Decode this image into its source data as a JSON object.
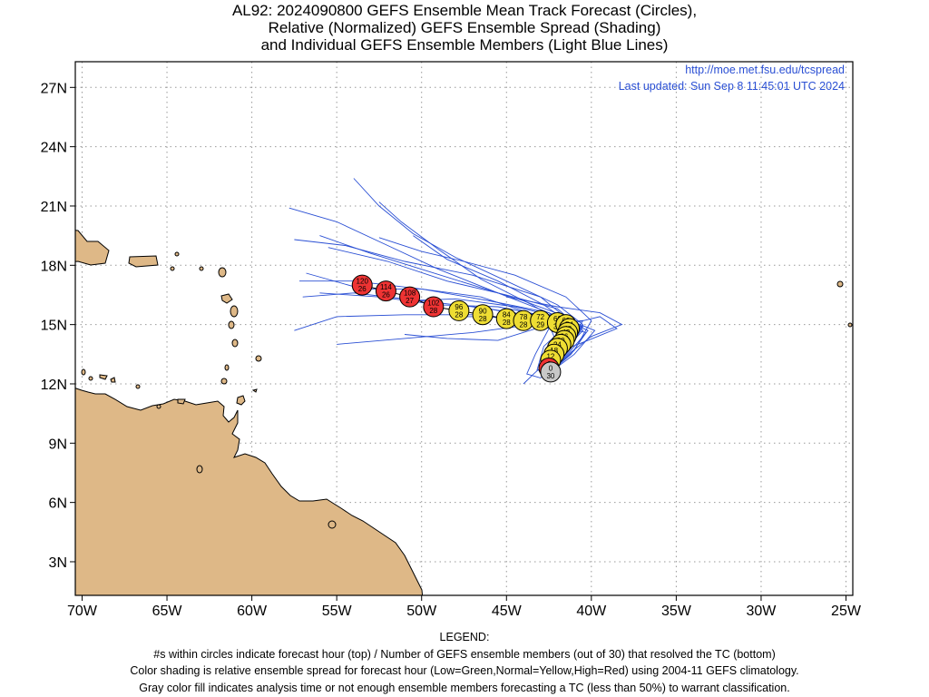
{
  "title": {
    "line1": "AL92: 2024090800 GEFS Ensemble Mean Track Forecast (Circles),",
    "line2": "Relative (Normalized) GEFS Ensemble Spread (Shading)",
    "line3": "and Individual GEFS Ensemble Members (Light Blue Lines)"
  },
  "source": {
    "url": "http://moe.met.fsu.edu/tcspread",
    "updated": "Last updated: Sun Sep 8 11:45:01 UTC 2024"
  },
  "axes": {
    "lat_labels": [
      "27N",
      "24N",
      "21N",
      "18N",
      "15N",
      "12N",
      "9N",
      "6N",
      "3N"
    ],
    "lat_values": [
      27,
      24,
      21,
      18,
      15,
      12,
      9,
      6,
      3
    ],
    "lon_labels": [
      "70W",
      "65W",
      "60W",
      "55W",
      "50W",
      "45W",
      "40W",
      "35W",
      "30W",
      "25W"
    ],
    "lon_values": [
      -70,
      -65,
      -60,
      -55,
      -50,
      -45,
      -40,
      -35,
      -30,
      -25
    ],
    "lon_range": [
      -70.4,
      -24.6
    ],
    "lat_range": [
      1.3,
      28.3
    ]
  },
  "colors": {
    "land": "#deb887",
    "ensemble_lines": "#2a4fd4",
    "high_spread": "#ee3333",
    "normal_spread": "#eedd33",
    "analysis_gray": "#c8c8c8",
    "source_text": "#2a4fd4"
  },
  "track": [
    {
      "hour": "0",
      "members": "30",
      "lon": -42.4,
      "lat": 12.6,
      "spread": "gray"
    },
    {
      "hour": "6",
      "members": "30",
      "lon": -42.5,
      "lat": 12.8,
      "spread": "high"
    },
    {
      "hour": "12",
      "members": "30",
      "lon": -42.4,
      "lat": 13.2,
      "spread": "normal"
    },
    {
      "hour": "18",
      "members": "30",
      "lon": -42.2,
      "lat": 13.5,
      "spread": "normal"
    },
    {
      "hour": "24",
      "members": "30",
      "lon": -42.0,
      "lat": 13.8,
      "spread": "normal"
    },
    {
      "hour": "30",
      "members": "30",
      "lon": -41.8,
      "lat": 14.0,
      "spread": "normal"
    },
    {
      "hour": "36",
      "members": "30",
      "lon": -41.6,
      "lat": 14.2,
      "spread": "normal"
    },
    {
      "hour": "42",
      "members": "30",
      "lon": -41.5,
      "lat": 14.4,
      "spread": "normal"
    },
    {
      "hour": "48",
      "members": "30",
      "lon": -41.4,
      "lat": 14.6,
      "spread": "normal"
    },
    {
      "hour": "54",
      "members": "30",
      "lon": -41.3,
      "lat": 14.8,
      "spread": "normal"
    },
    {
      "hour": "60",
      "members": "30",
      "lon": -41.5,
      "lat": 15.0,
      "spread": "normal"
    },
    {
      "hour": "66",
      "members": "30",
      "lon": -42.0,
      "lat": 15.1,
      "spread": "normal"
    },
    {
      "hour": "72",
      "members": "29",
      "lon": -43.0,
      "lat": 15.2,
      "spread": "normal"
    },
    {
      "hour": "78",
      "members": "28",
      "lon": -44.0,
      "lat": 15.2,
      "spread": "normal"
    },
    {
      "hour": "84",
      "members": "28",
      "lon": -45.0,
      "lat": 15.3,
      "spread": "normal"
    },
    {
      "hour": "90",
      "members": "28",
      "lon": -46.4,
      "lat": 15.5,
      "spread": "normal"
    },
    {
      "hour": "96",
      "members": "28",
      "lon": -47.8,
      "lat": 15.7,
      "spread": "normal"
    },
    {
      "hour": "102",
      "members": "28",
      "lon": -49.3,
      "lat": 15.9,
      "spread": "high"
    },
    {
      "hour": "108",
      "members": "27",
      "lon": -50.7,
      "lat": 16.4,
      "spread": "high"
    },
    {
      "hour": "114",
      "members": "26",
      "lon": -52.1,
      "lat": 16.7,
      "spread": "high"
    },
    {
      "hour": "120",
      "members": "26",
      "lon": -53.5,
      "lat": 17.0,
      "spread": "high"
    }
  ],
  "ensemble_members": [
    [
      [
        -42.4,
        12.6
      ],
      [
        -41.5,
        13.5
      ],
      [
        -40.8,
        14.6
      ],
      [
        -41.8,
        15.5
      ],
      [
        -44,
        16.2
      ],
      [
        -47,
        17
      ],
      [
        -50,
        17.8
      ],
      [
        -53,
        18.6
      ],
      [
        -56,
        19.5
      ]
    ],
    [
      [
        -42.4,
        12.6
      ],
      [
        -41.2,
        13.8
      ],
      [
        -40.5,
        15
      ],
      [
        -42,
        16
      ],
      [
        -45,
        17.2
      ],
      [
        -48,
        18.4
      ],
      [
        -50.5,
        19.6
      ],
      [
        -52.5,
        21
      ],
      [
        -54,
        22.4
      ]
    ],
    [
      [
        -42.4,
        12.6
      ],
      [
        -41.8,
        13.2
      ],
      [
        -41,
        14.4
      ],
      [
        -42.5,
        15.6
      ],
      [
        -45.5,
        16.6
      ],
      [
        -49,
        17.8
      ],
      [
        -52,
        19
      ],
      [
        -55,
        20.2
      ],
      [
        -57.8,
        20.9
      ]
    ],
    [
      [
        -42.4,
        12.6
      ],
      [
        -41.6,
        13.5
      ],
      [
        -40.8,
        14.8
      ],
      [
        -42.8,
        15.2
      ],
      [
        -46,
        15.8
      ],
      [
        -50,
        16.2
      ],
      [
        -54,
        16.6
      ],
      [
        -57,
        16.4
      ]
    ],
    [
      [
        -42.4,
        12.6
      ],
      [
        -41.4,
        13.6
      ],
      [
        -40.6,
        14.9
      ],
      [
        -43,
        15.1
      ],
      [
        -47,
        15.5
      ],
      [
        -51,
        15.5
      ],
      [
        -55,
        15.4
      ],
      [
        -57.5,
        14.7
      ]
    ],
    [
      [
        -42.4,
        12.6
      ],
      [
        -41.5,
        13.8
      ],
      [
        -40.5,
        15.2
      ],
      [
        -43.5,
        15
      ],
      [
        -47,
        14.6
      ],
      [
        -51,
        14.3
      ],
      [
        -55,
        14
      ]
    ],
    [
      [
        -42.4,
        12.6
      ],
      [
        -41.2,
        13.5
      ],
      [
        -40.3,
        14.6
      ],
      [
        -42.5,
        15
      ],
      [
        -45.5,
        14.2
      ],
      [
        -48.5,
        14.3
      ],
      [
        -51,
        14.5
      ]
    ],
    [
      [
        -42.4,
        12.6
      ],
      [
        -41.8,
        13.5
      ],
      [
        -40.7,
        14.8
      ],
      [
        -43,
        16.4
      ],
      [
        -47,
        17.5
      ],
      [
        -51,
        18.2
      ],
      [
        -54.5,
        19
      ],
      [
        -57.5,
        19.3
      ]
    ],
    [
      [
        -42.4,
        12.6
      ],
      [
        -41.3,
        13.6
      ],
      [
        -40.2,
        14.7
      ],
      [
        -42.5,
        15.6
      ],
      [
        -46,
        16.2
      ],
      [
        -50,
        16.8
      ],
      [
        -54,
        17.2
      ],
      [
        -57.2,
        17.2
      ]
    ],
    [
      [
        -42.4,
        12.6
      ],
      [
        -41,
        13.5
      ],
      [
        -39.8,
        14.7
      ],
      [
        -41.5,
        15.3
      ],
      [
        -44.5,
        15.9
      ],
      [
        -48,
        16.3
      ],
      [
        -51,
        16.2
      ]
    ],
    [
      [
        -42.4,
        12.6
      ],
      [
        -41.4,
        13.6
      ],
      [
        -40.5,
        14.9
      ],
      [
        -42.5,
        15.4
      ],
      [
        -45.5,
        15.9
      ],
      [
        -49,
        16
      ],
      [
        -52.5,
        16.4
      ],
      [
        -56,
        16.6
      ]
    ],
    [
      [
        -42.4,
        12.6
      ],
      [
        -41.5,
        13.6
      ],
      [
        -41,
        14.9
      ],
      [
        -42.8,
        16
      ],
      [
        -45.5,
        17.2
      ],
      [
        -48.5,
        18.3
      ],
      [
        -50.5,
        19.5
      ]
    ],
    [
      [
        -42.4,
        12.6
      ],
      [
        -41.8,
        13.5
      ],
      [
        -40.5,
        14.7
      ],
      [
        -42,
        15.8
      ],
      [
        -45,
        16.5
      ],
      [
        -48.5,
        17.2
      ],
      [
        -52,
        18.2
      ],
      [
        -55.5,
        18.9
      ]
    ],
    [
      [
        -42.4,
        12.6
      ],
      [
        -41.2,
        13.6
      ],
      [
        -40,
        14.4
      ],
      [
        -38.2,
        15
      ],
      [
        -39.5,
        15.6
      ],
      [
        -42,
        15.9
      ],
      [
        -45,
        16.4
      ]
    ],
    [
      [
        -42.4,
        12.6
      ],
      [
        -41.7,
        13.8
      ],
      [
        -41.5,
        15
      ],
      [
        -43.5,
        16
      ],
      [
        -46.5,
        17.3
      ],
      [
        -49,
        18.8
      ],
      [
        -51.2,
        20.2
      ],
      [
        -52.5,
        21.2
      ]
    ],
    [
      [
        -42.4,
        12.6
      ],
      [
        -42,
        13.5
      ],
      [
        -41.2,
        14.6
      ],
      [
        -43,
        15.4
      ],
      [
        -46.5,
        16.4
      ],
      [
        -50,
        16.8
      ],
      [
        -53.5,
        16.8
      ],
      [
        -56.8,
        17.6
      ]
    ],
    [
      [
        -42.4,
        12.6
      ],
      [
        -43,
        12.3
      ],
      [
        -43.8,
        12.5
      ],
      [
        -43.3,
        13.5
      ],
      [
        -42.5,
        14.8
      ],
      [
        -44.5,
        15.6
      ],
      [
        -47,
        15.9
      ]
    ],
    [
      [
        -42.4,
        12.6
      ],
      [
        -43.2,
        12.7
      ],
      [
        -42.8,
        13.9
      ],
      [
        -41.4,
        15
      ],
      [
        -39.5,
        15.4
      ],
      [
        -38.5,
        14.8
      ],
      [
        -40.2,
        14.2
      ],
      [
        -42,
        13.6
      ],
      [
        -43.4,
        12.5
      ],
      [
        -44,
        12
      ]
    ],
    [
      [
        -42.4,
        12.6
      ],
      [
        -41.9,
        13.8
      ],
      [
        -42.4,
        14.8
      ],
      [
        -44,
        15.2
      ],
      [
        -46,
        15.4
      ],
      [
        -48,
        15.4
      ]
    ],
    [
      [
        -42.4,
        12.6
      ],
      [
        -41,
        13.7
      ],
      [
        -40,
        15.2
      ],
      [
        -41.5,
        16.4
      ],
      [
        -44.5,
        17.5
      ],
      [
        -47.5,
        18.2
      ],
      [
        -50,
        18.7
      ],
      [
        -52.5,
        19.4
      ]
    ]
  ],
  "legend": {
    "heading": "LEGEND:",
    "line1": "#s within circles indicate forecast hour (top) / Number of GEFS ensemble members (out of 30) that resolved the TC (bottom)",
    "line2": "Color shading is relative ensemble spread for forecast hour (Low=Green,Normal=Yellow,High=Red) using 2004-11 GEFS climatology.",
    "line3": "Gray color fill indicates analysis time or not enough ensemble members forecasting a TC (less than 50%) to warrant classification."
  }
}
